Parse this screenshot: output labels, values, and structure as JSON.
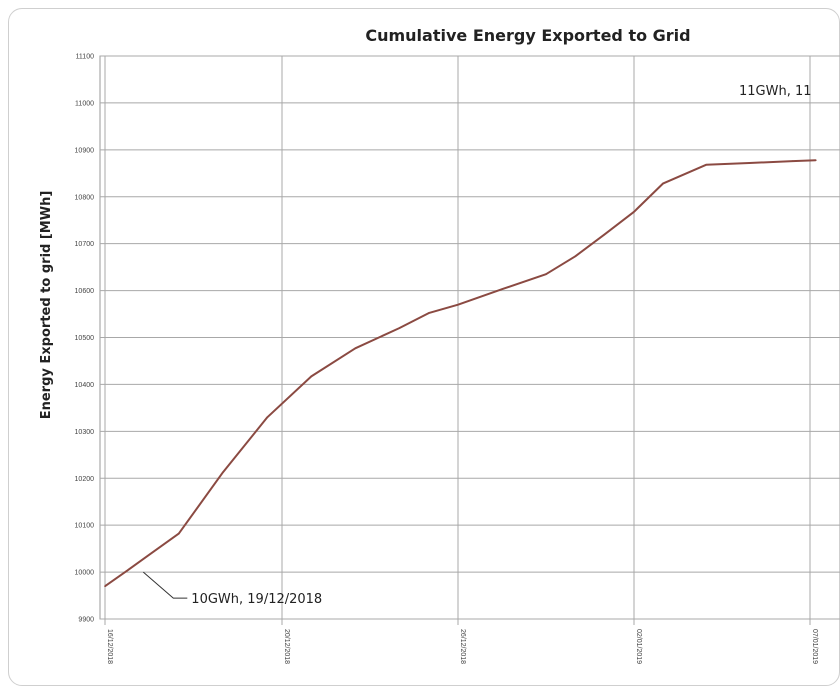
{
  "chart_data": {
    "type": "line",
    "title": "Cumulative Energy Exported to Grid",
    "xlabel": "",
    "ylabel": "Energy Exported to grid [MWh]",
    "ylim": [
      9900,
      11100
    ],
    "y_ticks": [
      "9900",
      "10000",
      "10100",
      "10200",
      "10300",
      "10400",
      "10500",
      "10600",
      "10700",
      "10800",
      "10900",
      "11000",
      "11100"
    ],
    "x_ticks": [
      "16/12/2018",
      "20/12/2018",
      "26/12/2018",
      "02/01/2019",
      "07/01/2019"
    ],
    "grid": true,
    "series": [
      {
        "name": "",
        "color": "#8b4a42",
        "x": [
          0,
          0.75,
          1.5,
          2.5,
          4,
          5.5,
          7,
          8.5,
          10,
          11,
          12,
          13.5,
          15,
          16,
          17,
          18,
          19,
          20.5,
          22,
          23.5,
          24.3
        ],
        "y": [
          9970,
          10003,
          10037,
          10082,
          10213,
          10330,
          10417,
          10477,
          10520,
          10552,
          10570,
          10603,
          10635,
          10673,
          10720,
          10768,
          10828,
          10868,
          10872,
          10876,
          10878
        ]
      }
    ],
    "annotations": [
      {
        "text": "10GWh, 19/12/2018",
        "x": 1.3,
        "y": 10000
      },
      {
        "text": "11GWh, 11",
        "x": 24.3,
        "y": 11000
      }
    ]
  }
}
